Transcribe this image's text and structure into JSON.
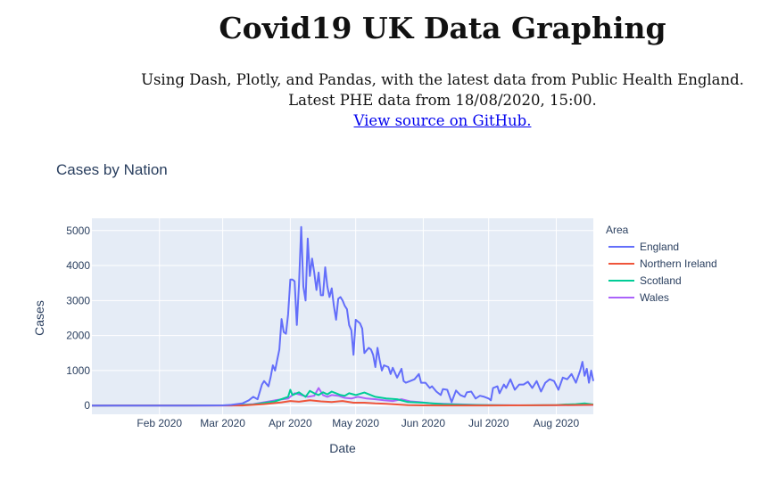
{
  "header": {
    "title": "Covid19 UK Data Graphing",
    "line1": "Using Dash, Plotly, and Pandas, with the latest data from Public Health England.",
    "line2": "Latest PHE data from 18/08/2020, 15:00.",
    "github_link": "View source on GitHub."
  },
  "chart_data": {
    "type": "line",
    "title": "Cases by Nation",
    "xlabel": "Date",
    "ylabel": "Cases",
    "x_range": [
      "2020-01-01",
      "2020-08-18"
    ],
    "ylim": [
      -250,
      5350
    ],
    "x_ticks": [
      {
        "date": "2020-02-01",
        "label": "Feb 2020"
      },
      {
        "date": "2020-03-01",
        "label": "Mar 2020"
      },
      {
        "date": "2020-04-01",
        "label": "Apr 2020"
      },
      {
        "date": "2020-05-01",
        "label": "May 2020"
      },
      {
        "date": "2020-06-01",
        "label": "Jun 2020"
      },
      {
        "date": "2020-07-01",
        "label": "Jul 2020"
      },
      {
        "date": "2020-08-01",
        "label": "Aug 2020"
      }
    ],
    "y_ticks": [
      0,
      1000,
      2000,
      3000,
      4000,
      5000
    ],
    "grid": true,
    "legend_title": "Area",
    "legend_position": "right",
    "series": [
      {
        "name": "England",
        "color": "#636efa",
        "x": [
          "2020-01-01",
          "2020-02-15",
          "2020-03-01",
          "2020-03-05",
          "2020-03-10",
          "2020-03-13",
          "2020-03-15",
          "2020-03-17",
          "2020-03-19",
          "2020-03-20",
          "2020-03-22",
          "2020-03-23",
          "2020-03-24",
          "2020-03-25",
          "2020-03-26",
          "2020-03-27",
          "2020-03-28",
          "2020-03-29",
          "2020-03-30",
          "2020-03-31",
          "2020-04-01",
          "2020-04-02",
          "2020-04-03",
          "2020-04-04",
          "2020-04-05",
          "2020-04-06",
          "2020-04-07",
          "2020-04-08",
          "2020-04-09",
          "2020-04-10",
          "2020-04-11",
          "2020-04-12",
          "2020-04-13",
          "2020-04-14",
          "2020-04-15",
          "2020-04-16",
          "2020-04-17",
          "2020-04-18",
          "2020-04-19",
          "2020-04-20",
          "2020-04-21",
          "2020-04-22",
          "2020-04-23",
          "2020-04-24",
          "2020-04-25",
          "2020-04-26",
          "2020-04-27",
          "2020-04-28",
          "2020-04-29",
          "2020-04-30",
          "2020-05-01",
          "2020-05-03",
          "2020-05-04",
          "2020-05-05",
          "2020-05-07",
          "2020-05-08",
          "2020-05-09",
          "2020-05-10",
          "2020-05-11",
          "2020-05-12",
          "2020-05-13",
          "2020-05-14",
          "2020-05-16",
          "2020-05-17",
          "2020-05-18",
          "2020-05-20",
          "2020-05-22",
          "2020-05-23",
          "2020-05-24",
          "2020-05-26",
          "2020-05-28",
          "2020-05-30",
          "2020-05-31",
          "2020-06-02",
          "2020-06-04",
          "2020-06-05",
          "2020-06-07",
          "2020-06-09",
          "2020-06-10",
          "2020-06-12",
          "2020-06-14",
          "2020-06-16",
          "2020-06-18",
          "2020-06-20",
          "2020-06-21",
          "2020-06-23",
          "2020-06-25",
          "2020-06-27",
          "2020-06-29",
          "2020-07-01",
          "2020-07-02",
          "2020-07-03",
          "2020-07-05",
          "2020-07-06",
          "2020-07-08",
          "2020-07-09",
          "2020-07-11",
          "2020-07-13",
          "2020-07-15",
          "2020-07-17",
          "2020-07-19",
          "2020-07-21",
          "2020-07-23",
          "2020-07-25",
          "2020-07-27",
          "2020-07-29",
          "2020-07-31",
          "2020-08-02",
          "2020-08-04",
          "2020-08-06",
          "2020-08-08",
          "2020-08-10",
          "2020-08-12",
          "2020-08-13",
          "2020-08-14",
          "2020-08-15",
          "2020-08-16",
          "2020-08-17",
          "2020-08-18"
        ],
        "y": [
          0,
          0,
          5,
          20,
          60,
          150,
          250,
          180,
          600,
          700,
          550,
          820,
          1150,
          1000,
          1300,
          1600,
          2470,
          2100,
          2050,
          2600,
          3600,
          3600,
          3550,
          2300,
          3450,
          5100,
          3400,
          3000,
          4770,
          3700,
          4200,
          3800,
          3300,
          3800,
          3150,
          3150,
          3950,
          3400,
          3100,
          3350,
          2850,
          2450,
          3050,
          3100,
          3000,
          2850,
          2750,
          2300,
          2150,
          1450,
          2450,
          2350,
          2200,
          1500,
          1650,
          1600,
          1450,
          1100,
          1650,
          1300,
          1000,
          1150,
          1100,
          900,
          1080,
          800,
          1050,
          700,
          650,
          700,
          750,
          900,
          650,
          650,
          500,
          550,
          400,
          300,
          470,
          450,
          100,
          430,
          300,
          250,
          380,
          400,
          200,
          280,
          250,
          200,
          150,
          500,
          550,
          350,
          600,
          500,
          750,
          450,
          600,
          600,
          680,
          500,
          700,
          400,
          650,
          750,
          700,
          450,
          800,
          750,
          900,
          650,
          1000,
          1250,
          850,
          1050,
          650,
          1000,
          700
        ]
      },
      {
        "name": "Northern Ireland",
        "color": "#ef553b",
        "x": [
          "2020-01-01",
          "2020-03-10",
          "2020-03-20",
          "2020-03-28",
          "2020-04-01",
          "2020-04-05",
          "2020-04-10",
          "2020-04-15",
          "2020-04-20",
          "2020-04-25",
          "2020-04-30",
          "2020-05-05",
          "2020-05-10",
          "2020-05-15",
          "2020-05-20",
          "2020-05-25",
          "2020-06-01",
          "2020-06-10",
          "2020-07-01",
          "2020-08-01",
          "2020-08-18"
        ],
        "y": [
          0,
          2,
          40,
          90,
          130,
          110,
          150,
          120,
          100,
          130,
          80,
          80,
          60,
          50,
          30,
          10,
          5,
          3,
          2,
          10,
          20
        ]
      },
      {
        "name": "Scotland",
        "color": "#00cc96",
        "x": [
          "2020-01-01",
          "2020-03-05",
          "2020-03-15",
          "2020-03-25",
          "2020-03-31",
          "2020-04-01",
          "2020-04-02",
          "2020-04-05",
          "2020-04-08",
          "2020-04-10",
          "2020-04-12",
          "2020-04-14",
          "2020-04-16",
          "2020-04-18",
          "2020-04-20",
          "2020-04-22",
          "2020-04-24",
          "2020-04-26",
          "2020-04-28",
          "2020-05-01",
          "2020-05-05",
          "2020-05-10",
          "2020-05-15",
          "2020-05-20",
          "2020-05-25",
          "2020-06-01",
          "2020-06-10",
          "2020-06-20",
          "2020-07-01",
          "2020-07-15",
          "2020-08-01",
          "2020-08-05",
          "2020-08-10",
          "2020-08-14",
          "2020-08-18"
        ],
        "y": [
          0,
          5,
          30,
          120,
          250,
          450,
          300,
          380,
          250,
          420,
          350,
          300,
          380,
          320,
          400,
          350,
          300,
          280,
          350,
          300,
          370,
          250,
          200,
          180,
          100,
          80,
          40,
          20,
          10,
          5,
          15,
          30,
          40,
          60,
          30
        ]
      },
      {
        "name": "Wales",
        "color": "#ab63fa",
        "x": [
          "2020-01-01",
          "2020-03-05",
          "2020-03-15",
          "2020-03-25",
          "2020-03-31",
          "2020-04-03",
          "2020-04-06",
          "2020-04-09",
          "2020-04-12",
          "2020-04-14",
          "2020-04-16",
          "2020-04-18",
          "2020-04-20",
          "2020-04-23",
          "2020-04-26",
          "2020-04-29",
          "2020-05-02",
          "2020-05-06",
          "2020-05-10",
          "2020-05-14",
          "2020-05-18",
          "2020-05-22",
          "2020-05-26",
          "2020-05-30",
          "2020-06-05",
          "2020-06-15",
          "2020-06-25",
          "2020-07-05",
          "2020-07-20",
          "2020-08-05",
          "2020-08-18"
        ],
        "y": [
          0,
          3,
          40,
          150,
          200,
          350,
          300,
          250,
          280,
          500,
          300,
          250,
          300,
          280,
          220,
          200,
          250,
          200,
          180,
          150,
          130,
          180,
          120,
          100,
          60,
          40,
          20,
          10,
          5,
          10,
          15
        ]
      }
    ]
  }
}
